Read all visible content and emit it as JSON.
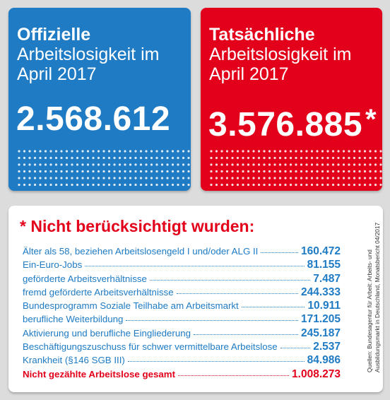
{
  "colors": {
    "blue": "#1e7bc4",
    "red": "#e2001a",
    "background": "#dcdcdc"
  },
  "official": {
    "title": "Offizielle",
    "subtitle_line1": "Arbeitslosigkeit im",
    "subtitle_line2": "April 2017",
    "value": "2.568.612"
  },
  "actual": {
    "title": "Tatsächliche",
    "subtitle_line1": "Arbeitslosigkeit im",
    "subtitle_line2": "April 2017",
    "value": "3.576.885",
    "asterisk": "*"
  },
  "panel": {
    "title": "* Nicht berücksichtigt wurden:",
    "rows": [
      {
        "label": "Älter als 58, beziehen Arbeitslosengeld I und/oder ALG II",
        "value": "160.472"
      },
      {
        "label": "Ein-Euro-Jobs",
        "value": "81.155"
      },
      {
        "label": "geförderte Arbeitsverhältnisse",
        "value": "7.487"
      },
      {
        "label": "fremd geförderte Arbeitsverhältnisse",
        "value": "244.333"
      },
      {
        "label": "Bundesprogramm Soziale Teilhabe am Arbeitsmarkt",
        "value": "10.911"
      },
      {
        "label": "berufliche Weiterbildung",
        "value": "171.205"
      },
      {
        "label": "Aktivierung und berufliche Eingliederung",
        "value": "245.187"
      },
      {
        "label": "Beschäftigungszuschuss für schwer vermittelbare Arbeitslose",
        "value": "2.537"
      },
      {
        "label": "Krankheit (§146 SGB III)",
        "value": "84.986"
      }
    ],
    "total": {
      "label": "Nicht gezählte Arbeitslose gesamt",
      "value": "1.008.273"
    },
    "source_line1": "Quellen: Bundesagentur für Arbeit: Arbeits- und",
    "source_line2": "Ausbildungsmarkt in Deutschland, Monatsbericht 04/2017"
  }
}
